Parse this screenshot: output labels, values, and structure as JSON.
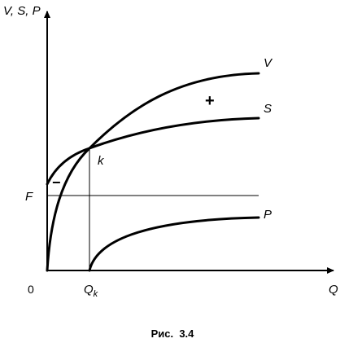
{
  "axes": {
    "y_label": "V, S, P",
    "x_label": "Q",
    "origin": "0"
  },
  "marks": {
    "F": "F",
    "Qk": {
      "main": "Q",
      "sub": "k"
    },
    "k": "k",
    "minus": "−",
    "plus": "+"
  },
  "curves": {
    "V": "V",
    "S": "S",
    "P": "P"
  },
  "caption": "Рис.  3.4"
}
